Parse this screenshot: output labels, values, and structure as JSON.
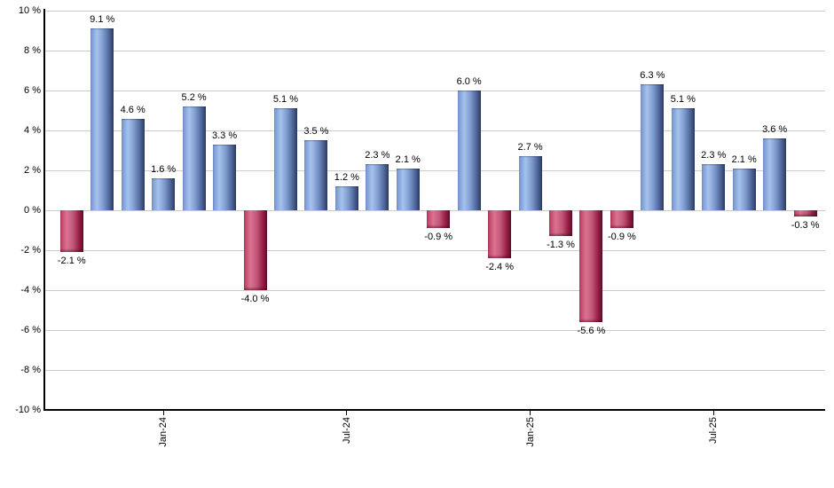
{
  "chart_data": {
    "type": "bar",
    "title": "",
    "xlabel": "",
    "ylabel": "",
    "ylim": [
      -10,
      10
    ],
    "grid": true,
    "legend": false,
    "y_axis": {
      "tick_values": [
        10,
        8,
        6,
        4,
        2,
        0,
        -2,
        -4,
        -6,
        -8,
        -10
      ],
      "tick_labels": [
        "10 %",
        "8 %",
        "6 %",
        "4 %",
        "2 %",
        "0 %",
        "-2 %",
        "-4 %",
        "-6 %",
        "-8 %",
        "-10 %"
      ]
    },
    "x_axis": {
      "ticks": [
        {
          "label": "Jan-24",
          "bar_index": 3
        },
        {
          "label": "Jul-24",
          "bar_index": 9
        },
        {
          "label": "Jan-25",
          "bar_index": 15
        },
        {
          "label": "Jul-25",
          "bar_index": 21
        }
      ]
    },
    "bars": [
      {
        "value": -2.1,
        "label": "-2.1 %"
      },
      {
        "value": 9.1,
        "label": "9.1 %"
      },
      {
        "value": 4.6,
        "label": "4.6 %"
      },
      {
        "value": 1.6,
        "label": "1.6 %"
      },
      {
        "value": 5.2,
        "label": "5.2 %"
      },
      {
        "value": 3.3,
        "label": "3.3 %"
      },
      {
        "value": -4.0,
        "label": "-4.0 %"
      },
      {
        "value": 5.1,
        "label": "5.1 %"
      },
      {
        "value": 3.5,
        "label": "3.5 %"
      },
      {
        "value": 1.2,
        "label": "1.2 %"
      },
      {
        "value": 2.3,
        "label": "2.3 %"
      },
      {
        "value": 2.1,
        "label": "2.1 %"
      },
      {
        "value": -0.9,
        "label": "-0.9 %"
      },
      {
        "value": 6.0,
        "label": "6.0 %"
      },
      {
        "value": -2.4,
        "label": "-2.4 %"
      },
      {
        "value": 2.7,
        "label": "2.7 %"
      },
      {
        "value": -1.3,
        "label": "-1.3 %"
      },
      {
        "value": -5.6,
        "label": "-5.6 %"
      },
      {
        "value": -0.9,
        "label": "-0.9 %"
      },
      {
        "value": 6.3,
        "label": "6.3 %"
      },
      {
        "value": 5.1,
        "label": "5.1 %"
      },
      {
        "value": 2.3,
        "label": "2.3 %"
      },
      {
        "value": 2.1,
        "label": "2.1 %"
      },
      {
        "value": 3.6,
        "label": "3.6 %"
      },
      {
        "value": -0.3,
        "label": "-0.3 %"
      }
    ],
    "colors": {
      "positive_bar_gradient": [
        "#7493cc",
        "#a6c2ee",
        "#7e9bcd",
        "#51679c",
        "#2c3a5e"
      ],
      "negative_bar_gradient": [
        "#bd3d62",
        "#da7390",
        "#c2577a",
        "#992046",
        "#5e0f2a"
      ],
      "gridline": "#cccccc",
      "axis": "#000000",
      "text": "#000000",
      "background": "#ffffff"
    }
  }
}
